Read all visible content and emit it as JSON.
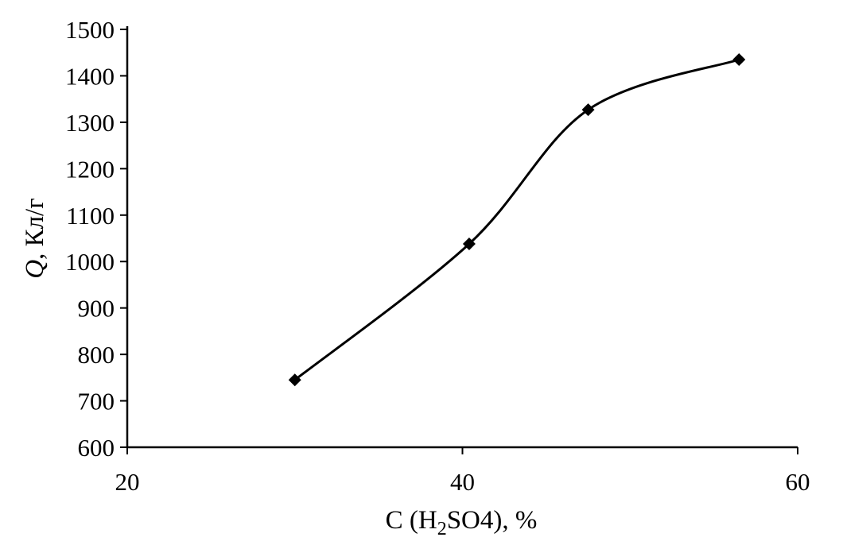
{
  "chart_data": {
    "type": "line",
    "title": "",
    "xlabel": {
      "prefix": "C (H",
      "sub": "2",
      "suffix": "SO4), %"
    },
    "ylabel": {
      "symbol": "Q",
      "suffix": ", Кл/г"
    },
    "xlim": [
      20,
      60
    ],
    "ylim": [
      600,
      1500
    ],
    "xticks": [
      "20",
      "40",
      "60"
    ],
    "yticks": [
      "600",
      "700",
      "800",
      "900",
      "1000",
      "1100",
      "1200",
      "1300",
      "1400",
      "1500"
    ],
    "grid": false,
    "smooth": true,
    "marker": "diamond",
    "line_color": "#000000",
    "series": [
      {
        "x": [
          30.0,
          40.4,
          47.5,
          56.5
        ],
        "y": [
          745,
          1038,
          1327,
          1435
        ]
      }
    ]
  }
}
